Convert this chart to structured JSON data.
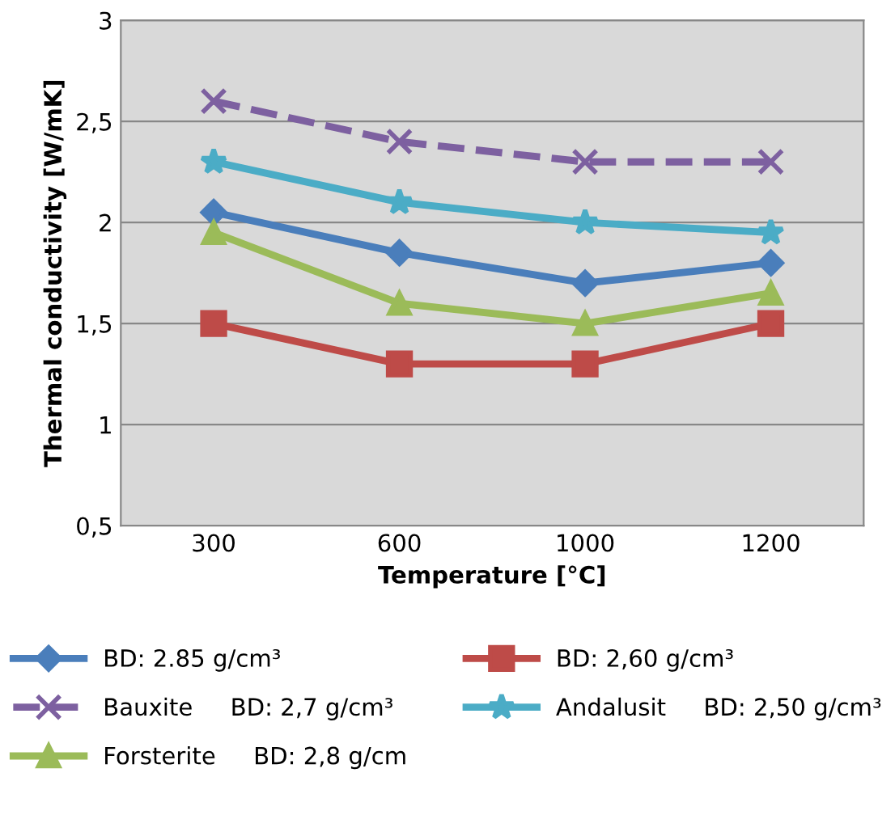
{
  "chart_data": {
    "type": "line",
    "xlabel": "Temperature [°C]",
    "ylabel": "Thermal conductivity [W/mK]",
    "categories": [
      "300",
      "600",
      "1000",
      "1200"
    ],
    "series": [
      {
        "name": "BD: 2.85 g/cm³",
        "color": "#4a7ebb",
        "marker": "diamond",
        "line_style": "solid",
        "values": [
          2.05,
          1.85,
          1.7,
          1.8
        ]
      },
      {
        "name": "BD: 2,60 g/cm³",
        "color": "#be4b48",
        "marker": "square",
        "line_style": "solid",
        "values": [
          1.5,
          1.3,
          1.3,
          1.5
        ]
      },
      {
        "name": "Bauxite     BD: 2,7 g/cm³",
        "color": "#7d60a0",
        "marker": "cross",
        "line_style": "dashed",
        "values": [
          2.6,
          2.4,
          2.3,
          2.3
        ]
      },
      {
        "name": "Andalusit     BD: 2,50 g/cm³",
        "color": "#4bacc6",
        "marker": "star",
        "line_style": "solid",
        "values": [
          2.3,
          2.1,
          2.0,
          1.95
        ]
      },
      {
        "name": "Forsterite     BD: 2,8 g/cm",
        "color": "#9bbb59",
        "marker": "triangle",
        "line_style": "solid",
        "values": [
          1.95,
          1.6,
          1.5,
          1.65
        ]
      }
    ],
    "ylim": [
      0.5,
      3
    ],
    "yticks": [
      {
        "value": 0.5,
        "label": "0,5"
      },
      1,
      {
        "value": 1.5,
        "label": "1,5"
      },
      2,
      {
        "value": 2.5,
        "label": "2,5"
      },
      3
    ],
    "grid": "y",
    "legend": "bottom"
  }
}
